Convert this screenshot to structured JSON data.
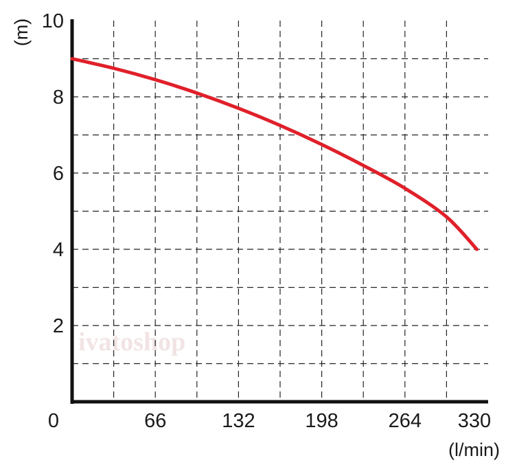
{
  "chart_data": {
    "type": "line",
    "title": "",
    "xlabel": "(l/min)",
    "ylabel": "(m)",
    "xlim": [
      0,
      330
    ],
    "ylim": [
      0,
      10
    ],
    "x_ticks": [
      0,
      66,
      132,
      198,
      264,
      330
    ],
    "y_ticks": [
      2,
      4,
      6,
      8,
      10
    ],
    "grid": true,
    "grid_style": "dashed",
    "x_grid_step": 33,
    "y_grid_step": 1,
    "series": [
      {
        "color": "#e0202a",
        "x": [
          0,
          33,
          66,
          99,
          132,
          165,
          198,
          231,
          264,
          297,
          321
        ],
        "y": [
          9.0,
          8.75,
          8.45,
          8.1,
          7.7,
          7.25,
          6.75,
          6.2,
          5.6,
          4.85,
          4.0
        ]
      }
    ],
    "watermark": "ivatoshop"
  }
}
